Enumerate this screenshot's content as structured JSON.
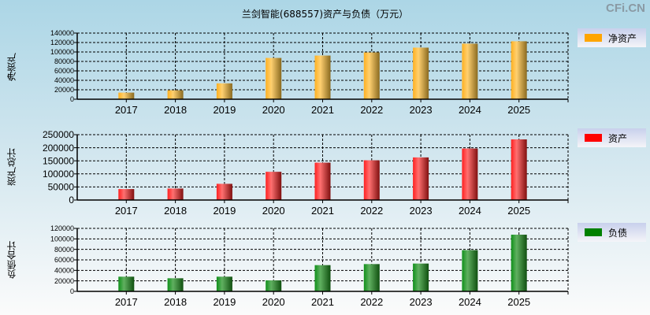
{
  "title": "兰剑智能(688557)资产与负债（万元）",
  "watermark": "CFi.CN",
  "chart_data": [
    {
      "type": "bar",
      "ylabel": "净资产",
      "legend": "净资产",
      "color": "#ffa500",
      "categories": [
        "2017",
        "2018",
        "2019",
        "2020",
        "2021",
        "2022",
        "2023",
        "2024",
        "2025"
      ],
      "values": [
        14000,
        19000,
        33600,
        87400,
        92400,
        99100,
        109200,
        117600,
        122700
      ],
      "ylim": [
        0,
        140000
      ],
      "yticks": [
        0,
        20000,
        40000,
        60000,
        80000,
        100000,
        120000,
        140000
      ],
      "grid": true,
      "legend_position": "right"
    },
    {
      "type": "bar",
      "ylabel": "资产总计",
      "legend": "资产",
      "color": "#ff0000",
      "categories": [
        "2017",
        "2018",
        "2019",
        "2020",
        "2021",
        "2022",
        "2023",
        "2024",
        "2025"
      ],
      "values": [
        42000,
        44000,
        62000,
        108000,
        143000,
        152000,
        163000,
        197000,
        232000
      ],
      "ylim": [
        0,
        250000
      ],
      "yticks": [
        0,
        50000,
        100000,
        150000,
        200000,
        250000
      ],
      "grid": true,
      "legend_position": "right"
    },
    {
      "type": "bar",
      "ylabel": "负债合计",
      "legend": "负债",
      "color": "#008000",
      "categories": [
        "2017",
        "2018",
        "2019",
        "2020",
        "2021",
        "2022",
        "2023",
        "2024",
        "2025"
      ],
      "values": [
        28000,
        25000,
        28000,
        21000,
        50000,
        52000,
        53000,
        78500,
        108000
      ],
      "ylim": [
        0,
        120000
      ],
      "yticks": [
        0,
        20000,
        40000,
        60000,
        80000,
        100000,
        120000
      ],
      "grid": true,
      "legend_position": "right"
    }
  ]
}
